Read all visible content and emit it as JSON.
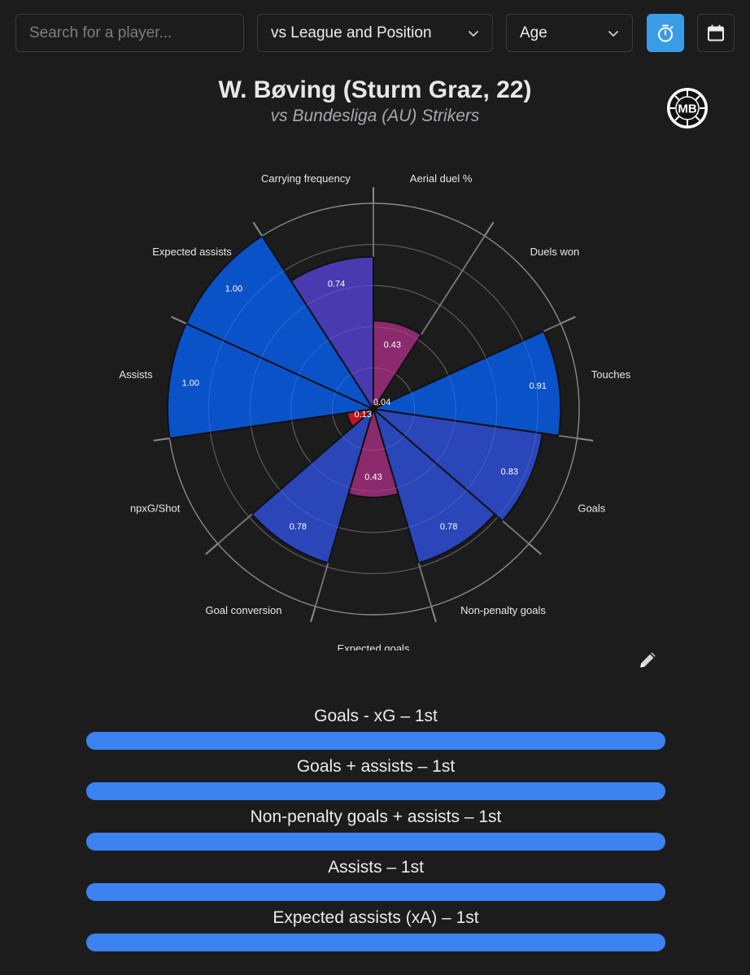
{
  "toolbar": {
    "search_placeholder": "Search for a player...",
    "comparison_select": "vs League and Position",
    "age_select": "Age",
    "timer_icon": "stopwatch-icon",
    "calendar_icon": "calendar-icon",
    "active_color": "#3b9ce6"
  },
  "header": {
    "title": "W. Bøving (Sturm Graz, 22)",
    "subtitle": "vs Bundesliga (AU) Strikers",
    "logo_text": "MB"
  },
  "chart_data": {
    "type": "polar-bar",
    "rlim": [
      0,
      1
    ],
    "grid": true,
    "categories": [
      "Aerial duel %",
      "Duels won",
      "Touches",
      "Goals",
      "Non-penalty goals",
      "Expected goals",
      "Goal conversion",
      "npxG/Shot",
      "Assists",
      "Expected assists",
      "Carrying frequency"
    ],
    "values": [
      0.43,
      0.04,
      0.91,
      0.83,
      0.78,
      0.43,
      0.78,
      0.13,
      1.0,
      1.0,
      0.74
    ],
    "labels": [
      "0.43",
      "0.04",
      "0.91",
      "0.83",
      "0.78",
      "0.43",
      "0.78",
      "0.13",
      "1.00",
      "1.00",
      "0.74"
    ],
    "colors": [
      "#8c2a6e",
      "#c0141e",
      "#0a52c8",
      "#2a46b8",
      "#2a46b8",
      "#8c2a6e",
      "#2a46b8",
      "#c0141e",
      "#0a52c8",
      "#0a52c8",
      "#4a3ab0"
    ]
  },
  "ranks": [
    {
      "label": "Goals - xG – 1st",
      "fill": 1.0
    },
    {
      "label": "Goals + assists – 1st",
      "fill": 1.0
    },
    {
      "label": "Non-penalty goals + assists – 1st",
      "fill": 1.0
    },
    {
      "label": "Assists – 1st",
      "fill": 1.0
    },
    {
      "label": "Expected assists (xA) – 1st",
      "fill": 1.0
    }
  ],
  "edit_icon": "pencil-icon"
}
